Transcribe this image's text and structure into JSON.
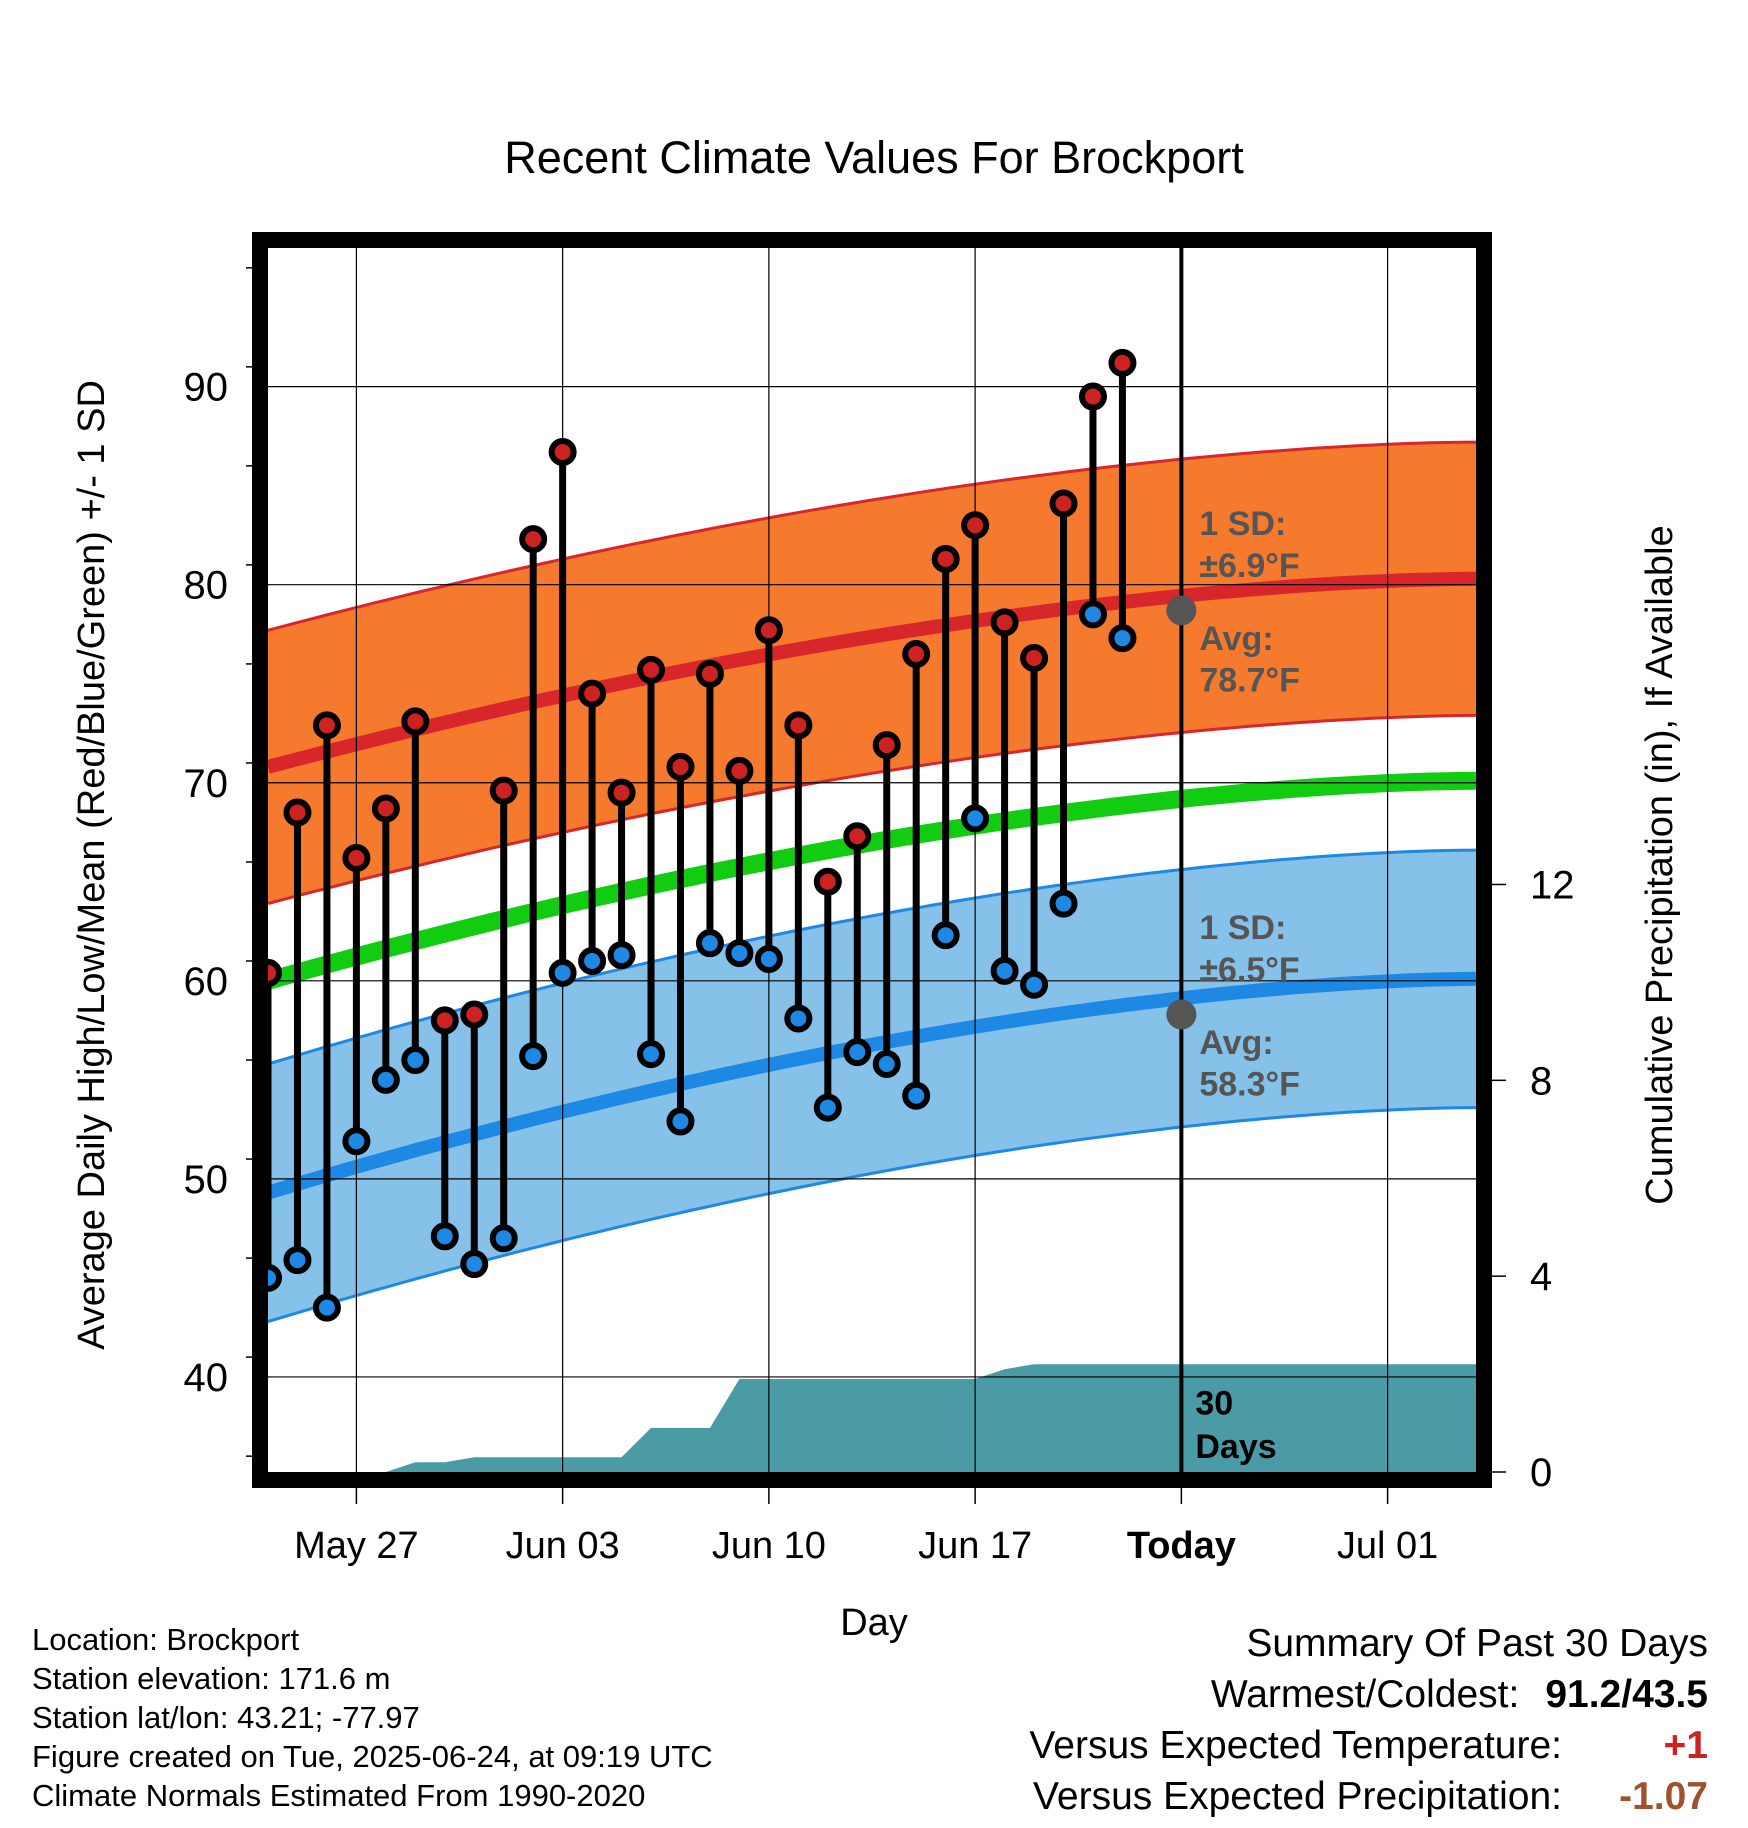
{
  "chart_data": {
    "type": "line",
    "title": "Recent Climate Values For Brockport",
    "xlabel": "Day",
    "ylabel": "Average Daily High/Low/Mean (Red/Blue/Green) +/- 1 SD",
    "y2label": "Cumulative Precipitation (in), If Available",
    "x_range": [
      "2025-05-24",
      "2025-07-04"
    ],
    "ylim": [
      35.2,
      97.0
    ],
    "y2lim": [
      0,
      25
    ],
    "y_ticks": [
      40,
      50,
      60,
      70,
      80,
      90
    ],
    "y2_ticks": [
      0,
      4,
      8,
      12
    ],
    "x_ticks": [
      {
        "date": "2025-05-27",
        "label": "May 27"
      },
      {
        "date": "2025-06-03",
        "label": "Jun 03"
      },
      {
        "date": "2025-06-10",
        "label": "Jun 10"
      },
      {
        "date": "2025-06-17",
        "label": "Jun 17"
      },
      {
        "date": "2025-06-24",
        "label": "Today"
      },
      {
        "date": "2025-07-01",
        "label": "Jul 01"
      }
    ],
    "grid": true,
    "today": "2025-06-24",
    "normal_high": {
      "start": 70.8,
      "end": 80.3,
      "sd": 6.9
    },
    "normal_low": {
      "start": 49.3,
      "end": 60.1,
      "sd": 6.5
    },
    "normal_mean": {
      "start": 60.0,
      "end": 70.1
    },
    "series": [
      {
        "name": "High",
        "color": "#cc2222",
        "dates": [
          "2025-05-24",
          "2025-05-25",
          "2025-05-26",
          "2025-05-27",
          "2025-05-28",
          "2025-05-29",
          "2025-05-30",
          "2025-05-31",
          "2025-06-01",
          "2025-06-02",
          "2025-06-03",
          "2025-06-04",
          "2025-06-05",
          "2025-06-06",
          "2025-06-07",
          "2025-06-08",
          "2025-06-09",
          "2025-06-10",
          "2025-06-11",
          "2025-06-12",
          "2025-06-13",
          "2025-06-14",
          "2025-06-15",
          "2025-06-16",
          "2025-06-17",
          "2025-06-18",
          "2025-06-19",
          "2025-06-20",
          "2025-06-21",
          "2025-06-22",
          "2025-06-23"
        ],
        "values": [
          60.4,
          68.5,
          72.9,
          66.2,
          68.7,
          73.1,
          58.0,
          58.3,
          69.6,
          82.3,
          86.7,
          74.5,
          69.5,
          75.7,
          70.8,
          75.5,
          70.6,
          77.7,
          72.9,
          65.0,
          67.3,
          71.9,
          76.5,
          81.3,
          83.0,
          78.1,
          76.3,
          84.1,
          89.5,
          91.2,
          null
        ],
        "bar_low": [
          45.0,
          45.9,
          43.5,
          51.9,
          55.0,
          56.0,
          47.1,
          45.7,
          47.0,
          56.2,
          60.4,
          61.0,
          61.3,
          56.3,
          52.9,
          61.9,
          61.4,
          61.1,
          58.1,
          53.6,
          56.4,
          55.8,
          54.2,
          62.3,
          68.2,
          60.5,
          59.8,
          63.9,
          78.5,
          77.3,
          null
        ]
      },
      {
        "name": "Low",
        "color": "#1e88e5",
        "dates": [
          "2025-05-24",
          "2025-05-25",
          "2025-05-26",
          "2025-05-27",
          "2025-05-28",
          "2025-05-29",
          "2025-05-30",
          "2025-05-31",
          "2025-06-01",
          "2025-06-02",
          "2025-06-03",
          "2025-06-04",
          "2025-06-05",
          "2025-06-06",
          "2025-06-07",
          "2025-06-08",
          "2025-06-09",
          "2025-06-10",
          "2025-06-11",
          "2025-06-12",
          "2025-06-13",
          "2025-06-14",
          "2025-06-15",
          "2025-06-16",
          "2025-06-17",
          "2025-06-18",
          "2025-06-19",
          "2025-06-20",
          "2025-06-21",
          "2025-06-22"
        ],
        "values": [
          45.0,
          45.9,
          43.5,
          51.9,
          55.0,
          56.0,
          47.1,
          45.7,
          47.0,
          56.2,
          60.4,
          61.0,
          61.3,
          56.3,
          52.9,
          61.9,
          61.4,
          61.1,
          58.1,
          53.6,
          56.4,
          55.8,
          54.2,
          62.3,
          68.2,
          60.5,
          59.8,
          63.9,
          78.5,
          77.3
        ]
      },
      {
        "name": "Cumulative Precipitation",
        "color": "#4a9ba5",
        "axis": "right",
        "dates": [
          "2025-05-25",
          "2025-05-26",
          "2025-05-27",
          "2025-05-28",
          "2025-05-29",
          "2025-05-30",
          "2025-05-31",
          "2025-06-01",
          "2025-06-02",
          "2025-06-03",
          "2025-06-04",
          "2025-06-05",
          "2025-06-06",
          "2025-06-07",
          "2025-06-08",
          "2025-06-09",
          "2025-06-10",
          "2025-06-11",
          "2025-06-12",
          "2025-06-13",
          "2025-06-14",
          "2025-06-15",
          "2025-06-16",
          "2025-06-17",
          "2025-06-18",
          "2025-06-19",
          "2025-06-20",
          "2025-06-21",
          "2025-06-22",
          "2025-06-23",
          "2025-06-24",
          "2025-07-04"
        ],
        "values": [
          0,
          0,
          0,
          0,
          0.2,
          0.2,
          0.3,
          0.3,
          0.3,
          0.3,
          0.3,
          0.3,
          0.9,
          0.9,
          0.9,
          1.9,
          1.9,
          1.9,
          1.9,
          1.9,
          1.9,
          1.9,
          1.9,
          1.9,
          2.1,
          2.2,
          2.2,
          2.2,
          2.2,
          2.2,
          2.2,
          2.2
        ]
      }
    ],
    "annotations": {
      "high_sd_label": "1 SD:",
      "high_sd_value": "±6.9°F",
      "high_avg_label": "Avg:",
      "high_avg_value": "78.7°F",
      "high_avg": 78.7,
      "low_sd_label": "1 SD:",
      "low_sd_value": "±6.5°F",
      "low_avg_label": "Avg:",
      "low_avg_value": "58.3°F",
      "low_avg": 58.3,
      "precip_label_1": "30",
      "precip_label_2": "Days"
    },
    "colors": {
      "high_band": "#f57a2e",
      "high_line": "#d8262b",
      "low_band": "#85c1e9",
      "low_line": "#1e88e5",
      "mean_line": "#11cc11",
      "precip": "#4a9ba5",
      "annotation": "#555555"
    }
  },
  "footer": {
    "location": "Location: Brockport",
    "elevation": "Station elevation: 171.6 m",
    "latlon": "Station lat/lon: 43.21; -77.97",
    "created": "Figure created on Tue, 2025-06-24, at 09:19 UTC",
    "normals": "Climate Normals Estimated From 1990-2020"
  },
  "summary": {
    "title": "Summary Of Past 30 Days",
    "warm_cold_label": "Warmest/Coldest:",
    "warm_cold_value": "91.2/43.5",
    "temp_label": "Versus Expected Temperature:",
    "temp_value": "+1",
    "temp_color": "#cc2222",
    "precip_label": "Versus Expected Precipitation:",
    "precip_value": "-1.07",
    "precip_color": "#a0522d"
  }
}
